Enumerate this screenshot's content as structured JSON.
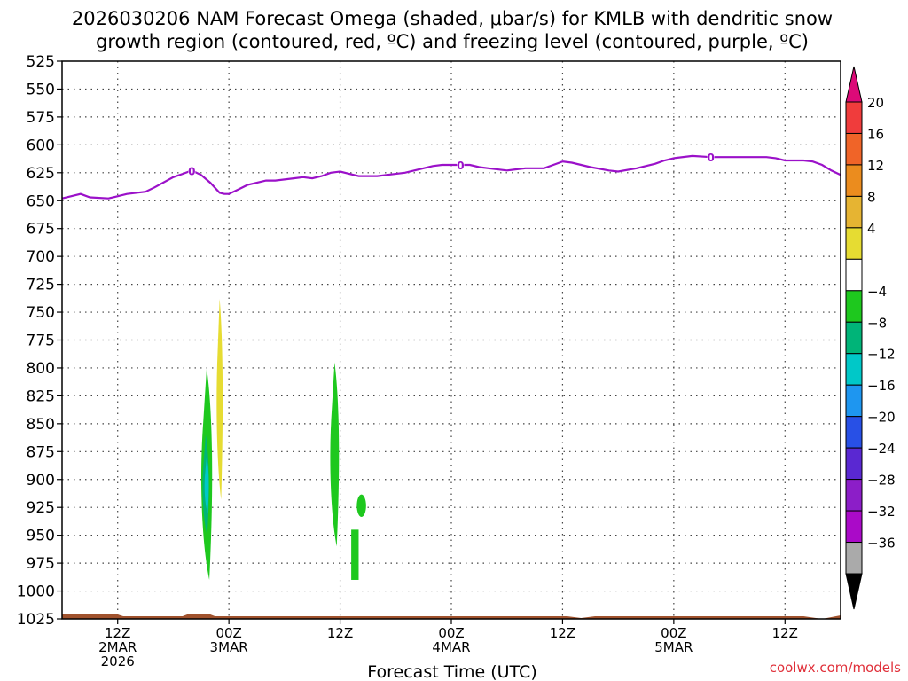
{
  "chart_data": {
    "type": "time-height cross section",
    "title_line1": "2026030206 NAM Forecast Omega (shaded, μbar/s) for KMLB with dendritic snow",
    "title_line2": "growth region (contoured, red, ºC) and freezing level (contoured, purple, ºC)",
    "xlabel": "Forecast Time (UTC)",
    "credit": "coolwx.com/models",
    "y_axis": {
      "units": "hPa",
      "range": [
        525,
        1025
      ],
      "ticks": [
        525,
        550,
        575,
        600,
        625,
        650,
        675,
        700,
        725,
        750,
        775,
        800,
        825,
        850,
        875,
        900,
        925,
        950,
        975,
        1000,
        1025
      ]
    },
    "x_axis": {
      "units": "forecast hour",
      "range": [
        0,
        84
      ],
      "ticks": [
        {
          "hour": 6,
          "lines": [
            "12Z",
            "2MAR",
            "2026"
          ]
        },
        {
          "hour": 18,
          "lines": [
            "00Z",
            "3MAR"
          ]
        },
        {
          "hour": 30,
          "lines": [
            "12Z"
          ]
        },
        {
          "hour": 42,
          "lines": [
            "00Z",
            "4MAR"
          ]
        },
        {
          "hour": 54,
          "lines": [
            "12Z"
          ]
        },
        {
          "hour": 66,
          "lines": [
            "00Z",
            "5MAR"
          ]
        },
        {
          "hour": 78,
          "lines": [
            "12Z"
          ]
        }
      ]
    },
    "colorbar": {
      "labels": [
        "20",
        "16",
        "12",
        "8",
        "4",
        "−4",
        "−8",
        "−12",
        "−16",
        "−20",
        "−24",
        "−28",
        "−32",
        "−36"
      ],
      "colors": [
        "#dc0a78",
        "#f03c3c",
        "#f06428",
        "#eb8c1e",
        "#e6b432",
        "#e6dc32",
        "#ffffff",
        "#1ec81e",
        "#00b478",
        "#00c8c8",
        "#1e96f0",
        "#2850e6",
        "#5a28d2",
        "#8c1ec8",
        "#aa0ac8",
        "#aaaaaa",
        "#000000"
      ]
    },
    "freezing_level": {
      "label": "0",
      "label_hours": [
        14,
        43,
        70
      ],
      "hours": [
        0,
        1,
        2,
        3,
        5,
        7,
        9,
        10,
        12,
        13,
        14,
        15,
        16,
        17,
        17.5,
        18,
        19,
        20,
        22,
        23,
        25,
        26,
        27,
        28,
        29,
        30,
        31,
        32,
        34,
        35,
        37,
        38,
        39,
        40,
        41,
        42,
        44,
        45,
        46,
        48,
        49,
        50,
        52,
        53,
        54,
        55,
        57,
        59,
        60,
        62,
        64,
        65,
        66,
        68,
        70,
        72,
        74,
        76,
        77,
        78,
        79,
        80,
        81,
        82,
        83,
        84
      ],
      "values": [
        648,
        646,
        644,
        647,
        648,
        644,
        642,
        638,
        629,
        626,
        623,
        627,
        634,
        643,
        644,
        644,
        640,
        636,
        632,
        632,
        630,
        629,
        630,
        628,
        625,
        624,
        626,
        628,
        628,
        627,
        625,
        623,
        621,
        619,
        618,
        618,
        618,
        620,
        621,
        623,
        622,
        621,
        621,
        618,
        615,
        616,
        620,
        623,
        624,
        621,
        617,
        614,
        612,
        610,
        611,
        611,
        611,
        611,
        612,
        614,
        614,
        614,
        615,
        618,
        623,
        627
      ]
    },
    "omega_features": [
      {
        "name": "green-plume-1",
        "value_range": [
          -8,
          -4
        ],
        "hour_center": 15.6,
        "p_top": 800,
        "p_bottom": 990
      },
      {
        "name": "teal-core-1",
        "value_range": [
          -12,
          -8
        ],
        "hour_center": 15.5,
        "p_top": 860,
        "p_bottom": 950
      },
      {
        "name": "cyan-core-1",
        "value_range": [
          -16,
          -12
        ],
        "hour_center": 15.6,
        "p_top": 880,
        "p_bottom": 930
      },
      {
        "name": "yellow-plume",
        "value_range": [
          4,
          8
        ],
        "hour_center": 17.0,
        "p_top": 738,
        "p_bottom": 918
      },
      {
        "name": "green-plume-2",
        "value_range": [
          -8,
          -4
        ],
        "hour_center": 29.4,
        "p_top": 795,
        "p_bottom": 960
      },
      {
        "name": "green-blob-small",
        "value_range": [
          -8,
          -4
        ],
        "hour_center": 32.3,
        "p_top": 915,
        "p_bottom": 932
      },
      {
        "name": "green-box-small",
        "value_range": [
          -8,
          -4
        ],
        "hour_center": 31.6,
        "p_top": 945,
        "p_bottom": 990
      }
    ],
    "terrain_color": "#a0522d"
  }
}
